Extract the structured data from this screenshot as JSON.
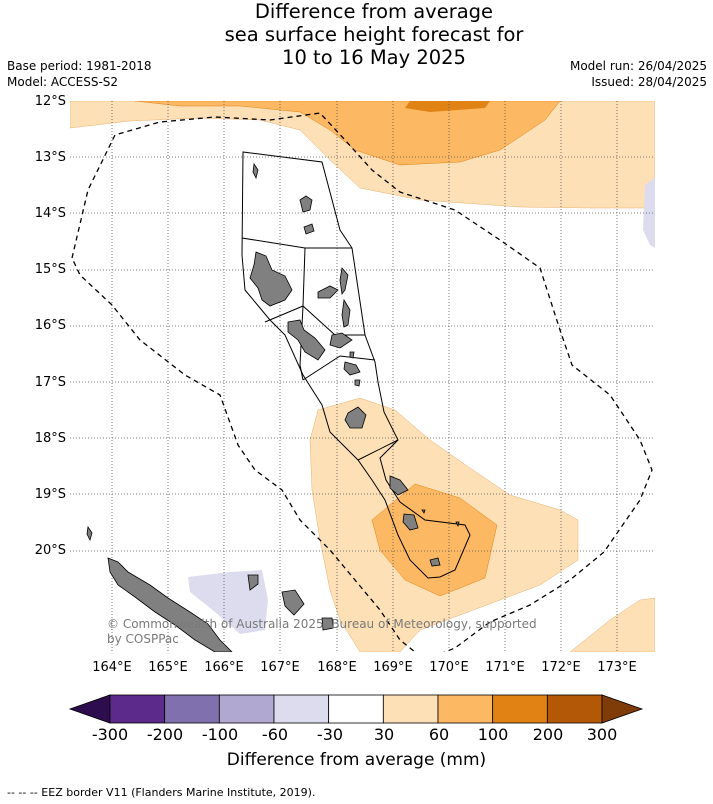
{
  "title_line1": "Difference from average",
  "title_line2": "sea surface height forecast for",
  "title_line3": "10 to 16 May 2025",
  "base_period": "Base period: 1981-2018",
  "model": "Model: ACCESS-S2",
  "model_run": "Model run: 26/04/2025",
  "issued": "Issued: 28/04/2025",
  "lat_labels": [
    "12°S",
    "13°S",
    "14°S",
    "15°S",
    "16°S",
    "17°S",
    "18°S",
    "19°S",
    "20°S"
  ],
  "lon_labels": [
    "164°E",
    "165°E",
    "166°E",
    "167°E",
    "168°E",
    "169°E",
    "170°E",
    "171°E",
    "172°E",
    "173°E"
  ],
  "copyright_line1": "© Commonwealth of Australia 2025, Bureau of Meteorology, supported",
  "copyright_line2": "by COSPPac",
  "colorbar": {
    "ticks": [
      "-300",
      "-200",
      "-100",
      "-60",
      "-30",
      "30",
      "60",
      "100",
      "200",
      "300"
    ],
    "colors": [
      "#2d0d4e",
      "#5b2a8a",
      "#8170ae",
      "#b0a8d0",
      "#dcdcee",
      "#ffffff",
      "#fee0b6",
      "#fdb863",
      "#e08214",
      "#b35806",
      "#7f3b08"
    ],
    "label": "Difference from average (mm)"
  },
  "footer": "--  --  -- EEZ border V11 (Flanders Marine Institute, 2019).",
  "map": {
    "lat_range": [
      "12°S",
      "20°S"
    ],
    "lon_range": [
      "164°E",
      "173°E"
    ],
    "land_color": "#808080"
  }
}
